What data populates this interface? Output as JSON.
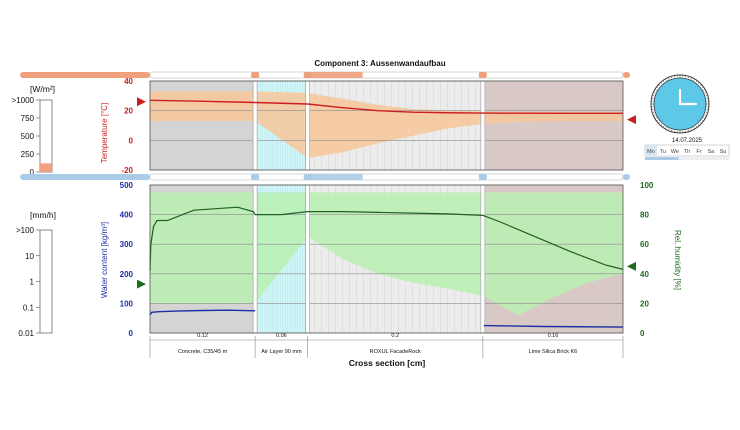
{
  "component_title": "Component 3: Aussenwandaufbau",
  "left_panel": {
    "radiation_unit": "[W/m²]",
    "radiation_ticks": [
      ">1000",
      "750",
      "500",
      "250",
      "0"
    ],
    "radiation_bar_fraction": 0.12,
    "rain_unit": "[mm/h]",
    "rain_ticks": [
      ">100",
      "10",
      "1",
      "0.1",
      "0.01"
    ]
  },
  "clock": {
    "hour": 12,
    "minute": 0,
    "face_color": "#5ec8e8",
    "date": "14.07.2025",
    "weekdays": [
      "Mo",
      "Tu",
      "We",
      "Th",
      "Fr",
      "Sa",
      "Su"
    ],
    "active_day": "Mo",
    "week_progress": 0.4
  },
  "colors": {
    "temperature": "#cc1f1f",
    "water": "#1d2fa6",
    "humidity": "#1e6b1e",
    "temp_band": "#f7c79a",
    "rh_band": "#b9f0b2",
    "rh_line": "#206020",
    "concrete": "#d4d4d4",
    "air": "#d4f5f7",
    "rockwool": "#ececec",
    "brick": "#d9c9c6",
    "edge_arrow_temp": "#cc1f1f",
    "edge_arrow_rh": "#1e6b1e"
  },
  "layers": [
    {
      "name": "Concrete, C35/45 m",
      "thickness_label": "0.12",
      "thickness": 0.12
    },
    {
      "name": "Air Layer 90 mm",
      "thickness_label": "0.06",
      "thickness": 0.06
    },
    {
      "name": "ROXUL FacadeRock",
      "thickness_label": "0.2",
      "thickness": 0.2
    },
    {
      "name": "Lime Silica Brick K6",
      "thickness_label": "0.16",
      "thickness": 0.16
    }
  ],
  "x_axis_label": "Cross section [cm]",
  "chart_data": [
    {
      "type": "line",
      "ylabel": "Temperature [°C]",
      "ylim": [
        -20,
        40
      ],
      "yticks": [
        -20,
        0,
        20,
        40
      ],
      "x_range": [
        0,
        0.54
      ],
      "grid": true,
      "series": [
        {
          "x": [
            0,
            0.05,
            0.12,
            0.15,
            0.18,
            0.22,
            0.26,
            0.3,
            0.34,
            0.38,
            0.42,
            0.48,
            0.54
          ],
          "values": [
            27,
            26.5,
            25.5,
            25,
            24.5,
            22,
            20,
            19,
            18.6,
            18.4,
            18.3,
            18.2,
            18.2
          ]
        }
      ],
      "envelope": {
        "x": [
          0,
          0.12,
          0.18,
          0.22,
          0.26,
          0.3,
          0.34,
          0.38,
          0.42,
          0.48,
          0.54
        ],
        "max": [
          33,
          33,
          32,
          28,
          24,
          21,
          20,
          19.5,
          19.2,
          19,
          19
        ],
        "min": [
          13,
          13,
          -12,
          -8,
          -2,
          3,
          8,
          11,
          12.5,
          13,
          13
        ]
      },
      "edge_values": {
        "left": 26,
        "right": 14
      }
    },
    {
      "type": "line",
      "ylabel": "Water content [kg/m³]",
      "ylim": [
        0,
        500
      ],
      "yticks": [
        0,
        100,
        200,
        300,
        400,
        500
      ],
      "y2label": "Rel. humidity [%]",
      "y2lim": [
        0,
        100
      ],
      "y2ticks": [
        0,
        20,
        40,
        60,
        80,
        100
      ],
      "x_range": [
        0,
        0.54
      ],
      "grid": true,
      "series": [
        {
          "axis": "y",
          "x": [
            0,
            0.002,
            0.01,
            0.03,
            0.06,
            0.09,
            0.12,
            0.13,
            0.18,
            0.181,
            0.38,
            0.381,
            0.45,
            0.54
          ],
          "values": [
            62,
            70,
            72,
            74,
            76,
            77,
            75,
            0,
            0,
            0,
            0,
            25,
            22,
            20
          ]
        },
        {
          "axis": "y2",
          "x": [
            0,
            0.001,
            0.004,
            0.008,
            0.02,
            0.05,
            0.1,
            0.118,
            0.12,
            0.15,
            0.18,
            0.22,
            0.26,
            0.3,
            0.34,
            0.38,
            0.4,
            0.44,
            0.48,
            0.52,
            0.54
          ],
          "values": [
            42,
            60,
            72,
            76,
            76,
            83,
            85,
            82,
            80,
            80,
            82,
            82,
            81.5,
            81,
            80.5,
            79.5,
            75,
            65,
            55,
            46,
            43
          ]
        }
      ],
      "envelope": {
        "axis": "y2",
        "x": [
          0,
          0.12,
          0.18,
          0.22,
          0.26,
          0.3,
          0.34,
          0.38,
          0.42,
          0.46,
          0.5,
          0.54
        ],
        "max": [
          95,
          95,
          95,
          95,
          95,
          95,
          95,
          95,
          95,
          95,
          95,
          95
        ],
        "min": [
          20,
          20,
          65,
          50,
          40,
          34,
          30,
          25,
          12,
          24,
          34,
          40
        ]
      },
      "edge_values": {
        "left": 33,
        "right": 45
      }
    }
  ]
}
